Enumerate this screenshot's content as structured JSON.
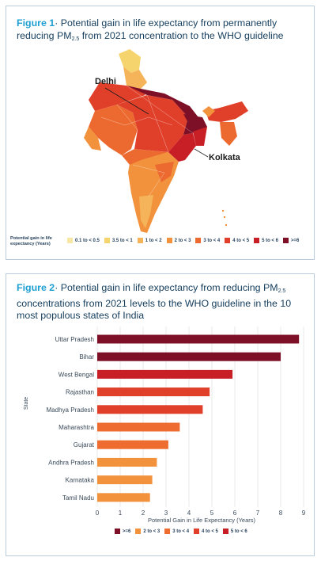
{
  "figure1": {
    "label": "Figure 1",
    "title": "· Potential gain in life expectancy from permanently reducing PM",
    "subscript": "2.5",
    "title_tail": " from 2021 concentration to the WHO guideline",
    "city_labels": [
      "Delhi",
      "Kolkata"
    ],
    "legend_title": "Potential gain in life expectancy (Years)",
    "legend": [
      {
        "label": "0.1 to < 0.5",
        "color": "#f8e7a4"
      },
      {
        "label": "3.5 to < 1",
        "color": "#f6d46d"
      },
      {
        "label": "1 to < 2",
        "color": "#f5b45a"
      },
      {
        "label": "2 to < 3",
        "color": "#f2923d"
      },
      {
        "label": "3 to < 4",
        "color": "#ec6a2f"
      },
      {
        "label": "4 to < 5",
        "color": "#e0402a"
      },
      {
        "label": "5 to < 6",
        "color": "#c81f26"
      },
      {
        "label": ">=6",
        "color": "#7d0f27"
      }
    ]
  },
  "figure2": {
    "label": "Figure 2",
    "title_pre": "· Potential gain in life expectancy from reducing PM",
    "subscript": "2.5",
    "title_post": " concentrations from 2021 levels to the WHO guideline in the 10 most populous states of India",
    "legend": [
      {
        "label": ">=6",
        "color": "#7d0f27"
      },
      {
        "label": "2 to < 3",
        "color": "#f2923d"
      },
      {
        "label": "3 to < 4",
        "color": "#ef6c30"
      },
      {
        "label": "4 to < 5",
        "color": "#e0402a"
      },
      {
        "label": "5 to < 6",
        "color": "#c81f26"
      }
    ]
  },
  "chart_data": {
    "type": "bar",
    "orientation": "horizontal",
    "categories": [
      "Uttar Pradesh",
      "Bihar",
      "West Bengal",
      "Rajasthan",
      "Madhya Pradesh",
      "Maharashtra",
      "Gujarat",
      "Andhra Pradesh",
      "Karnataka",
      "Tamil Nadu"
    ],
    "values": [
      8.8,
      8.0,
      5.9,
      4.9,
      4.6,
      3.6,
      3.1,
      2.6,
      2.4,
      2.3
    ],
    "colors": [
      "#7d0f27",
      "#7d0f27",
      "#c81f26",
      "#e0402a",
      "#e0402a",
      "#ef6c30",
      "#ef6c30",
      "#f2923d",
      "#f2923d",
      "#f2923d"
    ],
    "xlabel": "Potential Gain in Life Expectancy (Years)",
    "ylabel": "State",
    "xlim": [
      0,
      9
    ],
    "xticks": [
      0,
      1,
      2,
      3,
      4,
      5,
      6,
      7,
      8,
      9
    ],
    "grid": "vertical"
  }
}
